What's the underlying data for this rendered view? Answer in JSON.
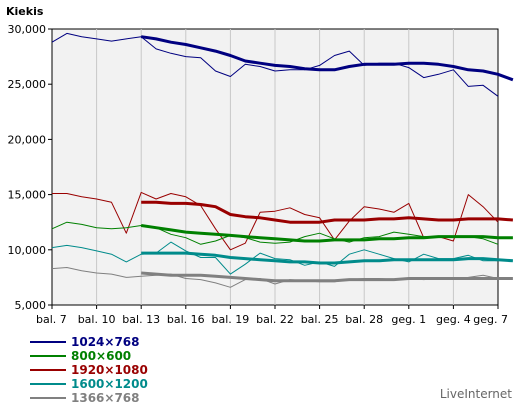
{
  "chart_data": {
    "type": "line",
    "ylabel": "Kiekis",
    "ylim": [
      5000,
      30000
    ],
    "yticks": [
      "5,000",
      "10,000",
      "15,000",
      "20,000",
      "25,000",
      "30,000"
    ],
    "ytick_values": [
      5000,
      10000,
      15000,
      20000,
      25000,
      30000
    ],
    "x_tick_labels": [
      "bal. 7",
      "bal. 10",
      "bal. 13",
      "bal. 16",
      "bal. 19",
      "bal. 22",
      "bal. 25",
      "bal. 28",
      "geg. 1",
      "geg. 4",
      "geg. 7"
    ],
    "n_points": 31,
    "grid": "vertical-at-ticks",
    "legend_position": "bottom-left",
    "series": [
      {
        "name": "1024×768",
        "color": "#000080",
        "values": [
          28800,
          29600,
          29300,
          29100,
          28900,
          29100,
          29300,
          28200,
          27800,
          27500,
          27400,
          26200,
          25700,
          26800,
          26600,
          26200,
          26300,
          26300,
          26700,
          27600,
          28000,
          26700,
          26900,
          26900,
          26500,
          25600,
          25900,
          26300,
          24800,
          24900,
          23900
        ],
        "avg_start": 6,
        "avg": [
          29300,
          29100,
          28800,
          28600,
          28300,
          28000,
          27600,
          27100,
          26900,
          26700,
          26600,
          26400,
          26300,
          26300,
          26600,
          26800,
          26800,
          26800,
          26900,
          26900,
          26800,
          26600,
          26300,
          26200,
          25900,
          25400
        ]
      },
      {
        "name": "800×600",
        "color": "#008000",
        "values": [
          11900,
          12500,
          12300,
          12000,
          11900,
          12000,
          12200,
          12000,
          11400,
          11100,
          10500,
          10800,
          11300,
          11100,
          10700,
          10600,
          10700,
          11200,
          11500,
          11000,
          10700,
          11100,
          11200,
          11600,
          11400,
          11200,
          11200,
          11200,
          11200,
          11000,
          10500
        ],
        "avg_start": 6,
        "avg": [
          12200,
          12000,
          11800,
          11600,
          11500,
          11400,
          11300,
          11200,
          11100,
          11000,
          10900,
          10800,
          10800,
          10900,
          10900,
          10900,
          11000,
          11000,
          11100,
          11100,
          11200,
          11200,
          11200,
          11200,
          11100,
          11100
        ]
      },
      {
        "name": "1920×1080",
        "color": "#990000",
        "values": [
          15100,
          15100,
          14800,
          14600,
          14300,
          11500,
          15200,
          14600,
          15100,
          14800,
          14000,
          11900,
          10000,
          10600,
          13400,
          13500,
          13800,
          13200,
          12900,
          10900,
          12600,
          13900,
          13700,
          13400,
          14200,
          11100,
          11200,
          10800,
          15000,
          13900,
          12500
        ],
        "avg_start": 6,
        "avg": [
          14300,
          14300,
          14200,
          14200,
          14100,
          13900,
          13200,
          13000,
          12900,
          12700,
          12500,
          12500,
          12500,
          12700,
          12700,
          12700,
          12800,
          12800,
          12900,
          12800,
          12700,
          12700,
          12800,
          12800,
          12800,
          12700
        ]
      },
      {
        "name": "1600×1200",
        "color": "#008b8b",
        "values": [
          10200,
          10400,
          10200,
          9900,
          9600,
          8900,
          9600,
          9700,
          10700,
          9900,
          9300,
          9300,
          7800,
          8700,
          9700,
          9200,
          9100,
          8600,
          8900,
          8500,
          9600,
          10000,
          9600,
          9200,
          8900,
          9600,
          9200,
          9200,
          9500,
          9000,
          9000
        ],
        "avg_start": 6,
        "avg": [
          9700,
          9700,
          9700,
          9700,
          9600,
          9500,
          9300,
          9200,
          9100,
          9000,
          8900,
          8900,
          8800,
          8800,
          8900,
          9000,
          9000,
          9100,
          9100,
          9100,
          9100,
          9100,
          9200,
          9200,
          9100,
          9000
        ]
      },
      {
        "name": "1366×768",
        "color": "#808080",
        "values": [
          8300,
          8400,
          8100,
          7900,
          7800,
          7500,
          7600,
          7700,
          7800,
          7400,
          7300,
          7000,
          6600,
          7300,
          7400,
          6900,
          7300,
          7200,
          7100,
          7100,
          7300,
          7400,
          7400,
          7300,
          7400,
          7300,
          7400,
          7400,
          7500,
          7700,
          7400
        ],
        "avg_start": 6,
        "avg": [
          7900,
          7800,
          7700,
          7700,
          7700,
          7600,
          7500,
          7400,
          7300,
          7200,
          7200,
          7200,
          7200,
          7200,
          7300,
          7300,
          7300,
          7300,
          7400,
          7400,
          7400,
          7400,
          7400,
          7400,
          7400,
          7400
        ]
      }
    ],
    "watermark": "LiveInternet"
  }
}
